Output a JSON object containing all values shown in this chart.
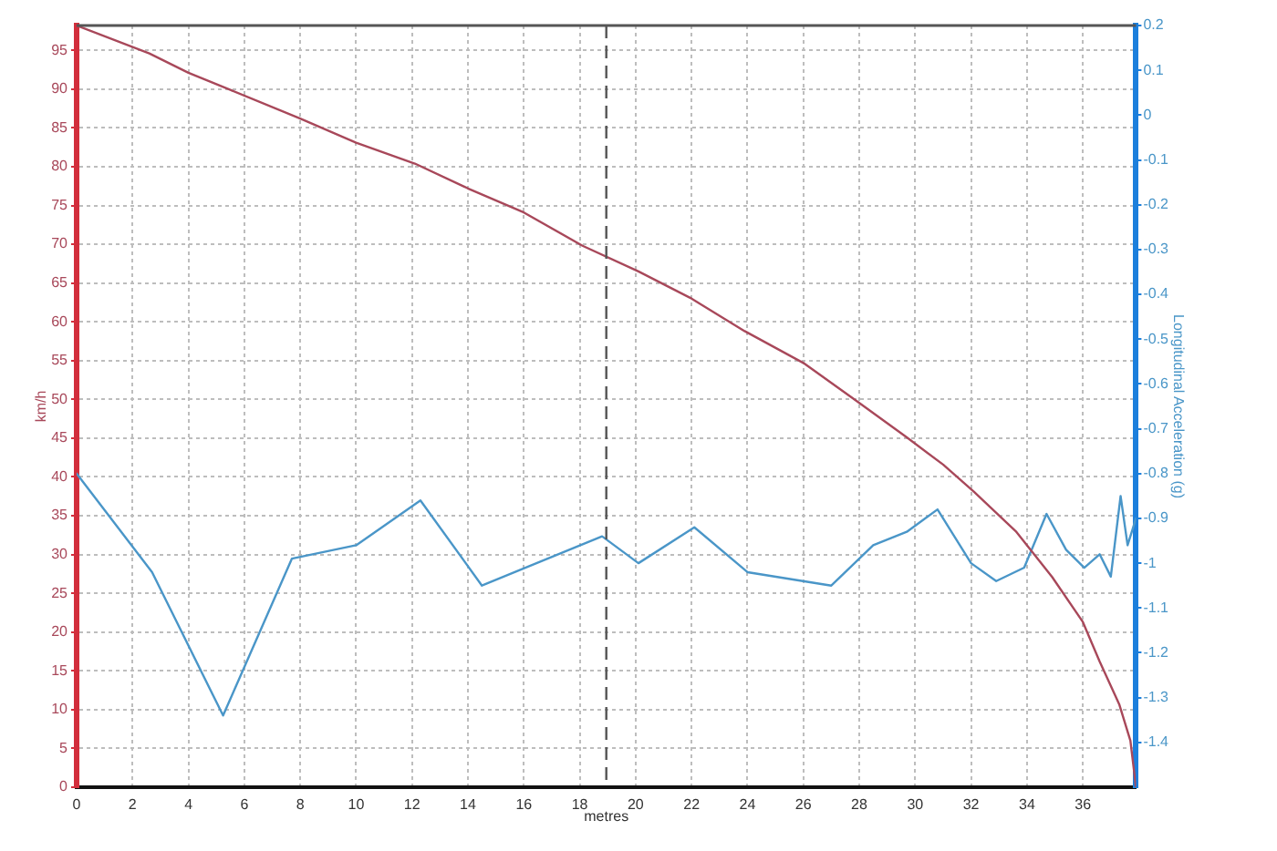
{
  "chart_data": {
    "type": "line",
    "xlabel": "metres",
    "ylabel": "km/h",
    "y2label": "Longitudinal Acceleration (g)",
    "xlim": [
      0,
      37.9
    ],
    "xticks": [
      0,
      2,
      4,
      6,
      8,
      10,
      12,
      14,
      16,
      18,
      20,
      22,
      24,
      26,
      28,
      30,
      32,
      34,
      36
    ],
    "ylim": [
      0,
      98.2
    ],
    "yticks": [
      0,
      5,
      10,
      15,
      20,
      25,
      30,
      35,
      40,
      45,
      50,
      55,
      60,
      65,
      70,
      75,
      80,
      85,
      90,
      95
    ],
    "y2lim": [
      -1.5,
      0.2
    ],
    "y2ticks": [
      0.2,
      0.1,
      0,
      -0.1,
      -0.2,
      -0.3,
      -0.4,
      -0.5,
      -0.6,
      -0.7,
      -0.8,
      -0.9,
      -1,
      -1.1,
      -1.2,
      -1.3,
      -1.4
    ],
    "grid": true,
    "marker": "none",
    "line_style": "solid",
    "ref_lines": [
      {
        "axis": "x",
        "value": 18.95,
        "color": "#555555",
        "line_style": "dashed"
      }
    ],
    "series": [
      {
        "color": "#a8485a",
        "x": [
          0,
          2.6,
          4,
          5.5,
          8,
          10,
          12.1,
          14,
          16,
          18.1,
          20.1,
          21.95,
          23.9,
          26,
          27.9,
          29.7,
          31,
          32.1,
          33.6,
          34.9,
          36,
          36.6,
          37.3,
          37.7,
          37.9
        ],
        "values": [
          98.2,
          94.6,
          92.1,
          89.9,
          86.2,
          83.1,
          80.4,
          77.2,
          74.1,
          69.8,
          66.5,
          63.1,
          58.8,
          54.7,
          49.8,
          45.1,
          41.6,
          38.1,
          33.0,
          27.1,
          21.3,
          16.2,
          10.7,
          6.0,
          0
        ]
      },
      {
        "color": "#4a96c8",
        "axis": "y2",
        "x": [
          0,
          2.7,
          5.24,
          7.7,
          10.0,
          12.3,
          14.5,
          18.8,
          20.1,
          22.1,
          24.0,
          27.0,
          28.5,
          29.7,
          30.8,
          32.0,
          32.9,
          33.9,
          34.7,
          35.4,
          36.05,
          36.6,
          37.0,
          37.35,
          37.6,
          37.9
        ],
        "values": [
          -0.8,
          -1.02,
          -1.34,
          -0.99,
          -0.96,
          -0.86,
          -1.05,
          -0.94,
          -1.0,
          -0.92,
          -1.02,
          -1.05,
          -0.96,
          -0.93,
          -0.88,
          -1.0,
          -1.04,
          -1.01,
          -0.89,
          -0.97,
          -1.01,
          -0.98,
          -1.03,
          -0.85,
          -0.96,
          -0.9
        ]
      }
    ]
  }
}
